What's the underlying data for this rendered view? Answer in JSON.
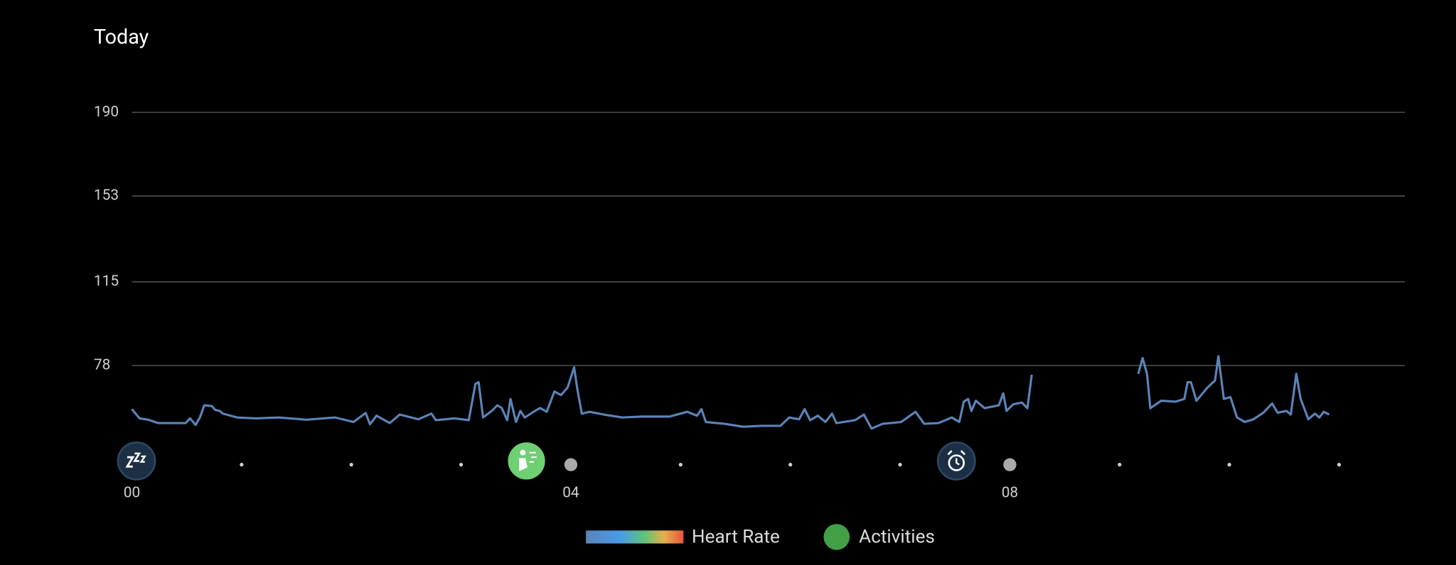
{
  "chart_data": {
    "type": "line",
    "title": "Today",
    "x": [
      0,
      0.07,
      0.15,
      0.24,
      0.49,
      0.53,
      0.58,
      0.62,
      0.66,
      0.73,
      0.76,
      0.8,
      0.83,
      0.96,
      1.13,
      1.34,
      1.59,
      1.85,
      2.02,
      2.13,
      2.17,
      2.23,
      2.35,
      2.44,
      2.61,
      2.73,
      2.77,
      2.94,
      3.07,
      3.13,
      3.16,
      3.2,
      3.28,
      3.33,
      3.37,
      3.42,
      3.45,
      3.5,
      3.54,
      3.58,
      3.66,
      3.72,
      3.78,
      3.85,
      3.91,
      3.97,
      4.03,
      4.06,
      4.1,
      4.17,
      4.3,
      4.47,
      4.64,
      4.9,
      5.06,
      5.15,
      5.19,
      5.23,
      5.4,
      5.57,
      5.74,
      5.91,
      5.99,
      6.08,
      6.13,
      6.18,
      6.25,
      6.32,
      6.38,
      6.42,
      6.59,
      6.67,
      6.74,
      6.84,
      7.01,
      7.14,
      7.22,
      7.35,
      7.47,
      7.54,
      7.58,
      7.62,
      7.65,
      7.69,
      7.77,
      7.9,
      7.94,
      7.97,
      8.03,
      8.11,
      8.16,
      8.2,
      null,
      9.17,
      9.21,
      9.25,
      9.28,
      9.38,
      9.51,
      9.59,
      9.62,
      9.65,
      9.7,
      9.8,
      9.87,
      9.9,
      9.95,
      10.01,
      10.07,
      10.14,
      10.22,
      10.31,
      10.39,
      10.44,
      10.52,
      10.56,
      10.61,
      10.65,
      10.72,
      10.78,
      10.82,
      10.86,
      10.91
    ],
    "series": [
      {
        "name": "Heart Rate",
        "color": "#5b84b8",
        "values": [
          58.7,
          54.6,
          54,
          52.5,
          52.5,
          54.6,
          51.7,
          55,
          60.4,
          60,
          58.3,
          57.9,
          56.7,
          55,
          54.6,
          55,
          54,
          55,
          53,
          57,
          52,
          55.8,
          52.5,
          56.3,
          54.2,
          56.7,
          53.8,
          54.6,
          53.8,
          69.8,
          70.6,
          55,
          57.9,
          60.4,
          59.2,
          53.8,
          63.2,
          53,
          57.9,
          55,
          57.5,
          59.2,
          57.5,
          66.5,
          64.9,
          68.2,
          77.2,
          67.3,
          56.7,
          57.5,
          56.3,
          55,
          55.4,
          55.4,
          57.5,
          55.8,
          58.7,
          53,
          52.2,
          50.9,
          51.3,
          51.3,
          55,
          54.2,
          58.7,
          53.8,
          55.8,
          53,
          56.7,
          52.5,
          53.8,
          56.3,
          50.1,
          52.2,
          53,
          57.5,
          52.2,
          52.5,
          55,
          53,
          62,
          63.2,
          57.9,
          62.4,
          59.1,
          60.4,
          65.7,
          57.9,
          60.8,
          61.6,
          59.1,
          73.9,
          null,
          74.3,
          81.3,
          74.3,
          59.1,
          62.4,
          62,
          63.2,
          70.6,
          70.6,
          62.4,
          68.2,
          71.4,
          82.1,
          63.2,
          64,
          55,
          53,
          54.2,
          57.1,
          61.2,
          57.1,
          57.9,
          56.3,
          74.3,
          63.2,
          54.2,
          56.7,
          55,
          57.5,
          56.3
        ]
      }
    ],
    "activity_legend": {
      "name": "Activities",
      "color": "#43a047"
    },
    "xlim": [
      0,
      11.6
    ],
    "xticks": [
      {
        "value": 0,
        "label": "00"
      },
      {
        "value": 4,
        "label": "04"
      },
      {
        "value": 8,
        "label": "08"
      }
    ],
    "xminorticks": [
      1,
      2,
      3,
      5,
      6,
      7,
      9,
      10,
      11
    ],
    "ylim": [
      44,
      190
    ],
    "yticks": [
      78,
      115,
      153,
      190
    ],
    "grid": true
  }
}
